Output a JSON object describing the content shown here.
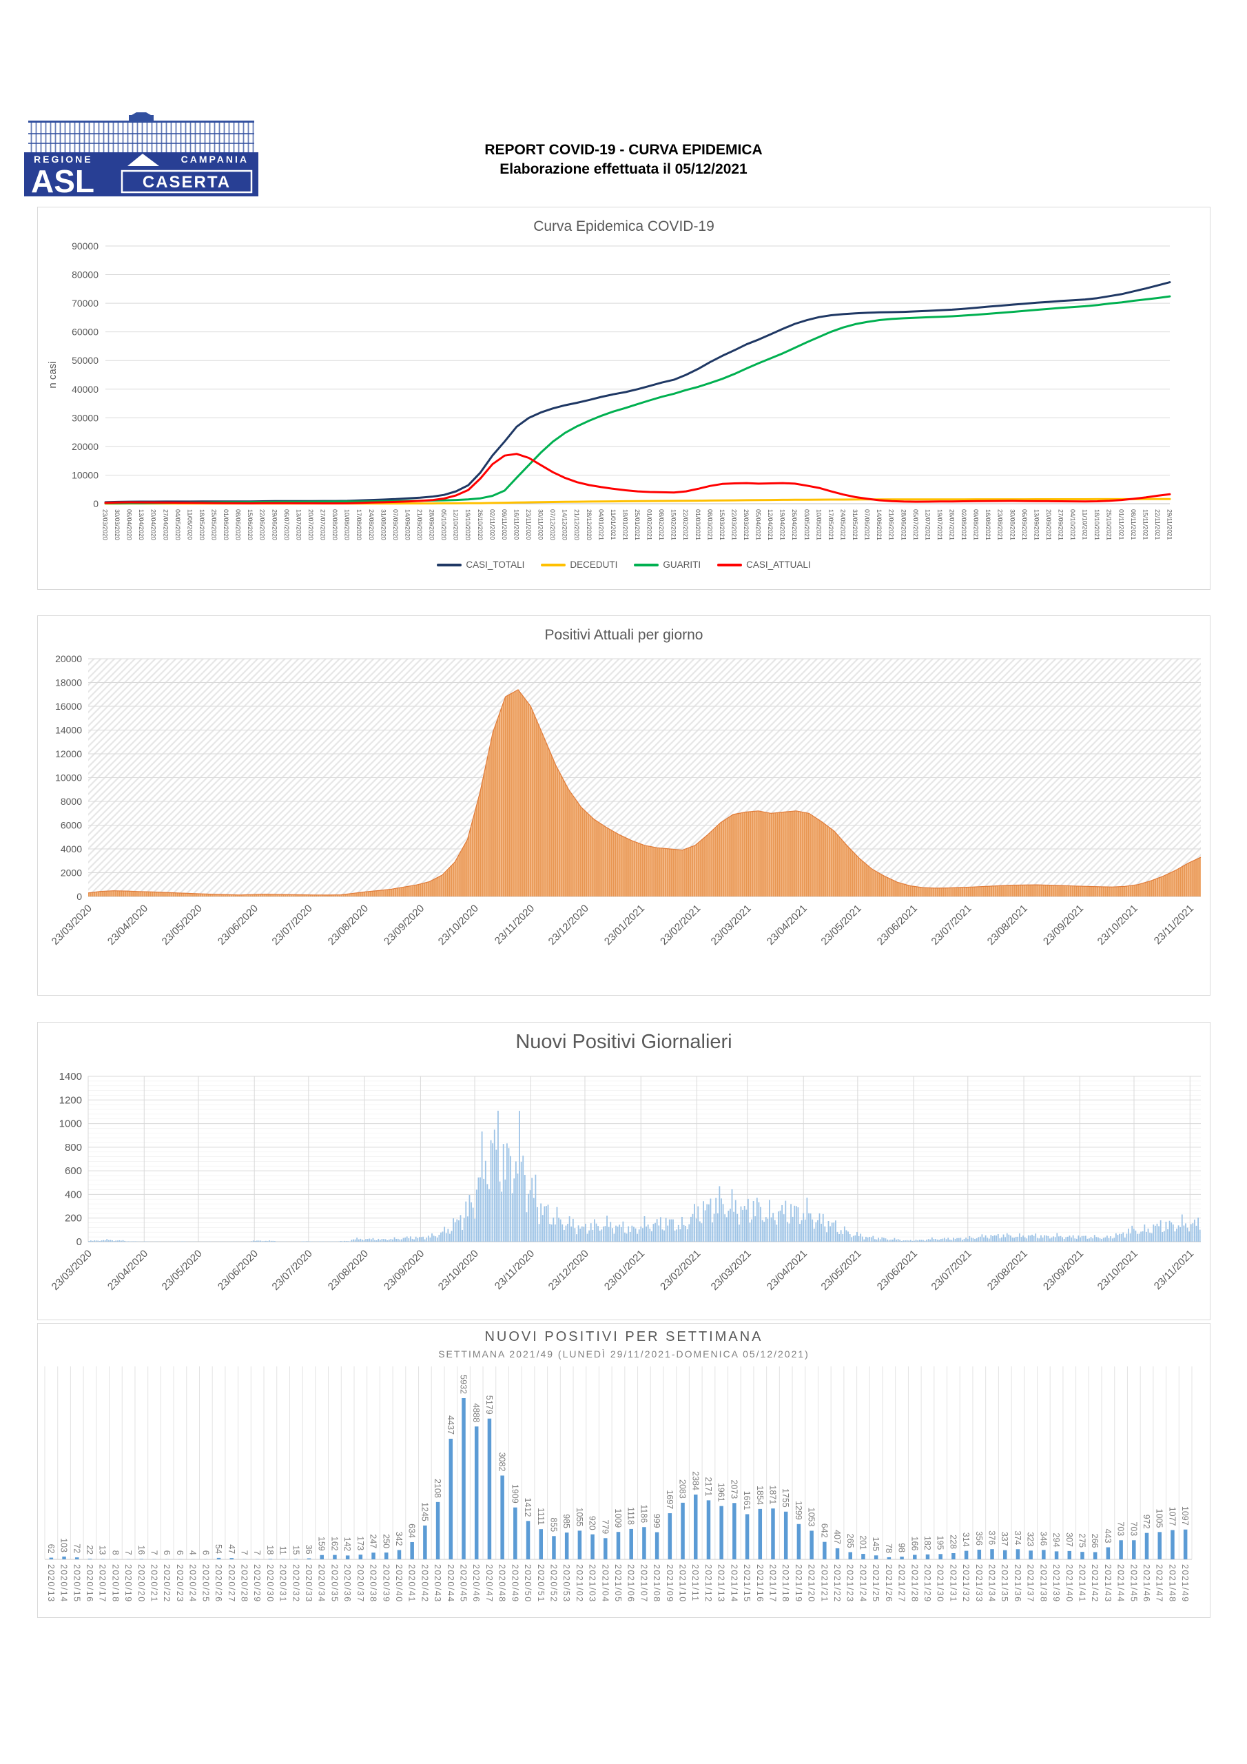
{
  "header": {
    "title_line1": "REPORT COVID-19 - CURVA EPIDEMICA",
    "title_line2": "Elaborazione effettuata il 05/12/2021",
    "logo": {
      "region": "REGIONE",
      "campania": "CAMPANIA",
      "asl": "ASL",
      "caserta": "CASERTA"
    }
  },
  "chart_data": [
    {
      "id": "curva-epidemica",
      "type": "line",
      "title": "Curva Epidemica COVID-19",
      "ylabel": "n casi",
      "ylim": [
        0,
        90000
      ],
      "ytick_step": 10000,
      "grid": "horizontal",
      "legend_position": "bottom",
      "x": [
        "23/03/2020",
        "30/03/2020",
        "06/04/2020",
        "13/04/2020",
        "20/04/2020",
        "27/04/2020",
        "04/05/2020",
        "11/05/2020",
        "18/05/2020",
        "25/05/2020",
        "01/06/2020",
        "08/06/2020",
        "15/06/2020",
        "22/06/2020",
        "29/06/2020",
        "06/07/2020",
        "13/07/2020",
        "20/07/2020",
        "27/07/2020",
        "03/08/2020",
        "10/08/2020",
        "17/08/2020",
        "24/08/2020",
        "31/08/2020",
        "07/09/2020",
        "14/09/2020",
        "21/09/2020",
        "28/09/2020",
        "05/10/2020",
        "12/10/2020",
        "19/10/2020",
        "26/10/2020",
        "02/11/2020",
        "09/11/2020",
        "16/11/2020",
        "23/11/2020",
        "30/11/2020",
        "07/12/2020",
        "14/12/2020",
        "21/12/2020",
        "28/12/2020",
        "04/01/2021",
        "11/01/2021",
        "18/01/2021",
        "25/01/2021",
        "01/02/2021",
        "08/02/2021",
        "15/02/2021",
        "22/02/2021",
        "01/03/2021",
        "08/03/2021",
        "15/03/2021",
        "22/03/2021",
        "29/03/2021",
        "05/04/2021",
        "12/04/2021",
        "19/04/2021",
        "26/04/2021",
        "03/05/2021",
        "10/05/2021",
        "17/05/2021",
        "24/05/2021",
        "31/05/2021",
        "07/06/2021",
        "14/06/2021",
        "21/06/2021",
        "28/06/2021",
        "05/07/2021",
        "12/07/2021",
        "19/07/2021",
        "26/07/2021",
        "02/08/2021",
        "09/08/2021",
        "16/08/2021",
        "23/08/2021",
        "30/08/2021",
        "06/09/2021",
        "13/09/2021",
        "20/09/2021",
        "27/09/2021",
        "04/10/2021",
        "11/10/2021",
        "18/10/2021",
        "25/10/2021",
        "01/11/2021",
        "08/11/2021",
        "15/11/2021",
        "22/11/2021",
        "29/11/2021"
      ],
      "series": [
        {
          "name": "CASI_TOTALI",
          "color": "#1f3864",
          "values": [
            517,
            620,
            692,
            714,
            727,
            735,
            742,
            758,
            765,
            771,
            777,
            781,
            787,
            841,
            888,
            895,
            902,
            920,
            931,
            946,
            982,
            1141,
            1303,
            1445,
            1618,
            1865,
            2115,
            2457,
            3091,
            4336,
            6444,
            10881,
            16813,
            21701,
            26880,
            29962,
            31871,
            33283,
            34394,
            35249,
            36234,
            37289,
            38209,
            38988,
            39997,
            41115,
            42301,
            43300,
            44997,
            47080,
            49464,
            51635,
            53596,
            55669,
            57330,
            59184,
            61055,
            62810,
            64109,
            65162,
            65804,
            66211,
            66476,
            66677,
            66822,
            66900,
            66998,
            67164,
            67346,
            67541,
            67769,
            68083,
            68439,
            68815,
            69152,
            69526,
            69849,
            70195,
            70489,
            70796,
            71071,
            71337,
            71780,
            72483,
            73186,
            74158,
            75163,
            76240,
            77337
          ]
        },
        {
          "name": "DECEDUTI",
          "color": "#ffc000",
          "values": [
            20,
            35,
            45,
            50,
            55,
            58,
            60,
            62,
            64,
            65,
            66,
            67,
            68,
            69,
            70,
            70,
            71,
            71,
            72,
            72,
            73,
            75,
            78,
            80,
            83,
            87,
            92,
            100,
            110,
            130,
            160,
            200,
            260,
            330,
            410,
            480,
            550,
            610,
            660,
            700,
            740,
            780,
            820,
            860,
            900,
            930,
            960,
            990,
            1020,
            1060,
            1100,
            1140,
            1180,
            1220,
            1260,
            1300,
            1340,
            1370,
            1400,
            1420,
            1440,
            1455,
            1470,
            1480,
            1490,
            1495,
            1500,
            1505,
            1510,
            1515,
            1520,
            1525,
            1530,
            1535,
            1540,
            1545,
            1550,
            1555,
            1560,
            1565,
            1570,
            1575,
            1580,
            1585,
            1590,
            1600,
            1610,
            1620,
            1630
          ]
        },
        {
          "name": "GUARITI",
          "color": "#00b050",
          "values": [
            197,
            155,
            167,
            204,
            252,
            297,
            342,
            396,
            441,
            486,
            531,
            564,
            589,
            612,
            628,
            655,
            681,
            709,
            729,
            754,
            769,
            796,
            825,
            865,
            915,
            978,
            1043,
            1107,
            1181,
            1306,
            1484,
            1881,
            2753,
            4571,
            9070,
            13482,
            17821,
            21673,
            24734,
            27049,
            28994,
            30709,
            32189,
            33428,
            34797,
            36085,
            37341,
            38410,
            39677,
            40820,
            42164,
            43595,
            45316,
            47249,
            49070,
            50784,
            52515,
            54440,
            56409,
            58242,
            60064,
            61556,
            62706,
            63497,
            64132,
            64505,
            64748,
            64959,
            65116,
            65266,
            65449,
            65708,
            66009,
            66330,
            66652,
            67001,
            67349,
            67720,
            68049,
            68381,
            68681,
            68962,
            69350,
            69898,
            70296,
            70858,
            71353,
            71820,
            72407
          ]
        },
        {
          "name": "CASI_ATTUALI",
          "color": "#ff0000",
          "values": [
            300,
            430,
            480,
            460,
            420,
            380,
            340,
            300,
            260,
            220,
            180,
            150,
            130,
            160,
            190,
            170,
            150,
            140,
            130,
            120,
            140,
            270,
            400,
            500,
            620,
            800,
            980,
            1250,
            1800,
            2900,
            4800,
            8800,
            13800,
            16800,
            17400,
            16000,
            13500,
            11000,
            9000,
            7500,
            6500,
            5800,
            5200,
            4700,
            4300,
            4100,
            4000,
            3900,
            4300,
            5200,
            6200,
            6900,
            7100,
            7200,
            7000,
            7100,
            7200,
            7000,
            6300,
            5500,
            4300,
            3200,
            2300,
            1700,
            1200,
            900,
            750,
            700,
            720,
            760,
            800,
            850,
            900,
            950,
            960,
            980,
            950,
            920,
            880,
            850,
            820,
            800,
            850,
            1000,
            1300,
            1700,
            2200,
            2800,
            3300
          ]
        }
      ]
    },
    {
      "id": "positivi-attuali-per-giorno",
      "type": "area",
      "title": "Positivi Attuali per giorno",
      "ylim": [
        0,
        20000
      ],
      "ytick_step": 2000,
      "fill_color": "#ed7d31",
      "background": "diagonal-hatch",
      "resolution": "weekly samples of daily series (estimated from plot)",
      "xtick_labels": [
        "23/03/2020",
        "23/04/2020",
        "23/05/2020",
        "23/06/2020",
        "23/07/2020",
        "23/08/2020",
        "23/09/2020",
        "23/10/2020",
        "23/11/2020",
        "23/12/2020",
        "23/01/2021",
        "23/02/2021",
        "23/03/2021",
        "23/04/2021",
        "23/05/2021",
        "23/06/2021",
        "23/07/2021",
        "23/08/2021",
        "23/09/2021",
        "23/10/2021",
        "23/11/2021"
      ],
      "values": [
        300,
        430,
        480,
        460,
        420,
        380,
        340,
        300,
        260,
        220,
        180,
        150,
        130,
        160,
        190,
        170,
        150,
        140,
        130,
        120,
        140,
        270,
        400,
        500,
        620,
        800,
        980,
        1250,
        1800,
        2900,
        4800,
        8800,
        13800,
        16800,
        17400,
        16000,
        13500,
        11000,
        9000,
        7500,
        6500,
        5800,
        5200,
        4700,
        4300,
        4100,
        4000,
        3900,
        4300,
        5200,
        6200,
        6900,
        7100,
        7200,
        7000,
        7100,
        7200,
        7000,
        6300,
        5500,
        4300,
        3200,
        2300,
        1700,
        1200,
        900,
        750,
        700,
        720,
        760,
        800,
        850,
        900,
        950,
        960,
        980,
        950,
        920,
        880,
        850,
        820,
        800,
        850,
        1000,
        1300,
        1700,
        2200,
        2800,
        3300
      ]
    },
    {
      "id": "nuovi-positivi-giornalieri",
      "type": "bar",
      "title": "Nuovi Positivi Giornalieri",
      "ylim": [
        0,
        1400
      ],
      "ytick_step": 200,
      "bar_color": "#9dc3e6",
      "resolution": "daily bars; weekly average of daily new positives (estimated from plot)",
      "xtick_labels": [
        "23/03/2020",
        "23/04/2020",
        "23/05/2020",
        "23/06/2020",
        "23/07/2020",
        "23/08/2020",
        "23/09/2020",
        "23/10/2020",
        "23/11/2020",
        "23/12/2020",
        "23/01/2021",
        "23/02/2021",
        "23/03/2021",
        "23/04/2021",
        "23/05/2021",
        "23/06/2021",
        "23/07/2021",
        "23/08/2021",
        "23/09/2021",
        "23/10/2021",
        "23/11/2021"
      ],
      "weekly_avg_daily_values": [
        9,
        15,
        10,
        3,
        2,
        1,
        1,
        2,
        1,
        1,
        1,
        1,
        1,
        8,
        7,
        1,
        1,
        3,
        2,
        2,
        5,
        23,
        23,
        20,
        25,
        35,
        36,
        49,
        91,
        178,
        301,
        634,
        847,
        698,
        740,
        440,
        273,
        202,
        159,
        122,
        141,
        151,
        131,
        111,
        144,
        160,
        169,
        143,
        242,
        298,
        341,
        310,
        280,
        296,
        237,
        265,
        267,
        251,
        186,
        150,
        92,
        58,
        38,
        29,
        21,
        11,
        14,
        24,
        26,
        28,
        33,
        45,
        51,
        54,
        48,
        53,
        46,
        49,
        42,
        44,
        39,
        38,
        63,
        100,
        100,
        139,
        144,
        154,
        157
      ]
    },
    {
      "id": "nuovi-positivi-per-settimana",
      "type": "bar",
      "title": "NUOVI POSITIVI PER SETTIMANA",
      "subtitle": "SETTIMANA 2021/49 (LUNEDÌ 29/11/2021-DOMENICA 05/12/2021)",
      "bar_color": "#5b9bd5",
      "label_color": "#7f7f7f",
      "ymax_display": 5932,
      "categories": [
        "2020/13",
        "2020/14",
        "2020/15",
        "2020/16",
        "2020/17",
        "2020/18",
        "2020/19",
        "2020/20",
        "2020/21",
        "2020/22",
        "2020/23",
        "2020/24",
        "2020/25",
        "2020/26",
        "2020/27",
        "2020/28",
        "2020/29",
        "2020/30",
        "2020/31",
        "2020/32",
        "2020/33",
        "2020/34",
        "2020/35",
        "2020/36",
        "2020/37",
        "2020/38",
        "2020/39",
        "2020/40",
        "2020/41",
        "2020/42",
        "2020/43",
        "2020/44",
        "2020/45",
        "2020/46",
        "2020/47",
        "2020/48",
        "2020/49",
        "2020/50",
        "2020/51",
        "2020/52",
        "2020/53",
        "2021/02",
        "2021/03",
        "2021/04",
        "2021/05",
        "2021/06",
        "2021/07",
        "2021/08",
        "2021/09",
        "2021/10",
        "2021/11",
        "2021/12",
        "2021/13",
        "2021/14",
        "2021/15",
        "2021/16",
        "2021/17",
        "2021/18",
        "2021/19",
        "2021/20",
        "2021/21",
        "2021/22",
        "2021/23",
        "2021/24",
        "2021/25",
        "2021/26",
        "2021/27",
        "2021/28",
        "2021/29",
        "2021/30",
        "2021/31",
        "2021/32",
        "2021/33",
        "2021/34",
        "2021/35",
        "2021/36",
        "2021/37",
        "2021/38",
        "2021/39",
        "2021/40",
        "2021/41",
        "2021/42",
        "2021/43",
        "2021/44",
        "2021/45",
        "2021/46",
        "2021/47",
        "2021/48",
        "2021/49"
      ],
      "values": [
        62,
        103,
        72,
        22,
        13,
        8,
        7,
        16,
        7,
        6,
        6,
        4,
        6,
        54,
        47,
        7,
        7,
        18,
        11,
        15,
        36,
        159,
        162,
        142,
        173,
        247,
        250,
        342,
        634,
        1245,
        2108,
        4437,
        5932,
        4888,
        5179,
        3082,
        1909,
        1412,
        1111,
        855,
        985,
        1055,
        920,
        779,
        1009,
        1118,
        1186,
        999,
        1697,
        2083,
        2384,
        2171,
        1961,
        2073,
        1661,
        1854,
        1871,
        1755,
        1299,
        1053,
        642,
        407,
        265,
        201,
        145,
        78,
        98,
        166,
        182,
        195,
        228,
        314,
        356,
        376,
        337,
        374,
        323,
        346,
        294,
        307,
        275,
        266,
        443,
        703,
        703,
        972,
        1005,
        1077,
        1097
      ]
    }
  ]
}
